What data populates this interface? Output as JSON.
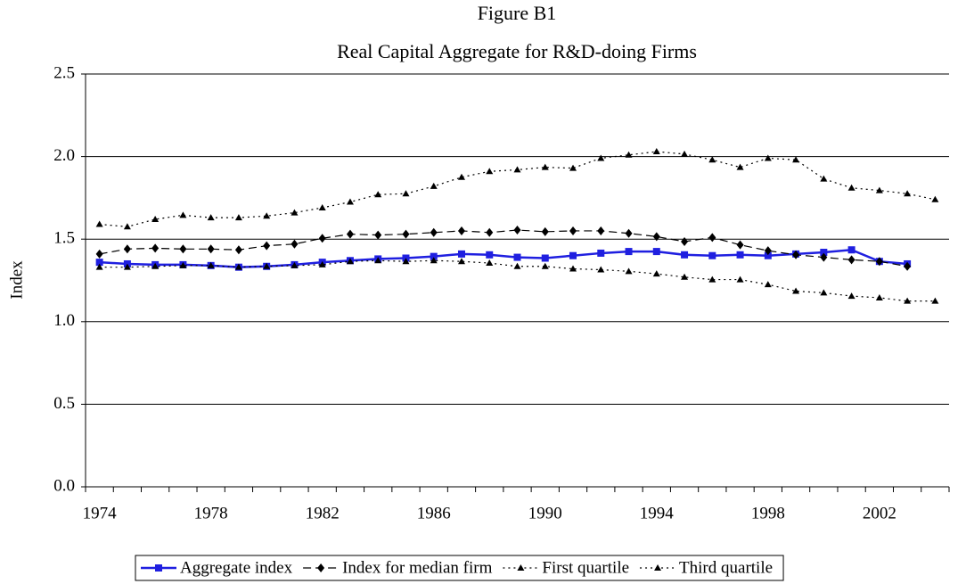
{
  "chart_data": {
    "type": "line",
    "title": "Figure B1",
    "subtitle": "Real Capital Aggregate for R&D-doing Firms",
    "y_label": "Index",
    "x": [
      1974,
      1975,
      1976,
      1977,
      1978,
      1979,
      1980,
      1981,
      1982,
      1983,
      1984,
      1985,
      1986,
      1987,
      1988,
      1989,
      1990,
      1991,
      1992,
      1993,
      1994,
      1995,
      1996,
      1997,
      1998,
      1999,
      2000,
      2001,
      2002,
      2003,
      2004
    ],
    "xlim": [
      1973.5,
      2004.5
    ],
    "xticks": [
      1974,
      1978,
      1982,
      1986,
      1990,
      1994,
      1998,
      2002
    ],
    "ylim": [
      0,
      2.5
    ],
    "yticks": [
      {
        "value": 0,
        "label": "0.0"
      },
      {
        "value": 0.5,
        "label": "0.5"
      },
      {
        "value": 1,
        "label": "1.0"
      },
      {
        "value": 1.5,
        "label": "1.5"
      },
      {
        "value": 2,
        "label": "2.0"
      },
      {
        "value": 2.5,
        "label": "2.5"
      }
    ],
    "grid": true,
    "legend": "bottom",
    "series": [
      {
        "name": "Aggregate index",
        "color": "#1f1fe0",
        "dash": "solid",
        "marker": "square",
        "values": [
          1.36,
          1.35,
          1.345,
          1.345,
          1.34,
          1.33,
          1.335,
          1.345,
          1.36,
          1.37,
          1.38,
          1.385,
          1.395,
          1.41,
          1.405,
          1.39,
          1.385,
          1.4,
          1.415,
          1.425,
          1.425,
          1.405,
          1.4,
          1.405,
          1.4,
          1.41,
          1.42,
          1.435,
          1.365,
          1.35,
          null
        ]
      },
      {
        "name": "Index for median firm",
        "color": "#000000",
        "dash": "dashed",
        "marker": "diamond",
        "values": [
          1.41,
          1.44,
          1.445,
          1.44,
          1.44,
          1.435,
          1.46,
          1.47,
          1.505,
          1.53,
          1.525,
          1.53,
          1.54,
          1.55,
          1.54,
          1.555,
          1.545,
          1.55,
          1.55,
          1.535,
          1.515,
          1.485,
          1.51,
          1.465,
          1.43,
          1.405,
          1.39,
          1.375,
          1.365,
          1.335,
          null
        ]
      },
      {
        "name": "First quartile",
        "color": "#000000",
        "dash": "dotted",
        "marker": "triangle",
        "values": [
          1.33,
          1.33,
          1.335,
          1.34,
          1.34,
          1.33,
          1.335,
          1.34,
          1.345,
          1.365,
          1.37,
          1.365,
          1.37,
          1.365,
          1.355,
          1.335,
          1.335,
          1.32,
          1.315,
          1.305,
          1.29,
          1.27,
          1.255,
          1.255,
          1.225,
          1.185,
          1.175,
          1.155,
          1.145,
          1.125,
          1.125
        ]
      },
      {
        "name": "Third quartile",
        "color": "#000000",
        "dash": "dotted",
        "marker": "triangle",
        "values": [
          1.59,
          1.575,
          1.62,
          1.645,
          1.63,
          1.63,
          1.64,
          1.66,
          1.69,
          1.725,
          1.77,
          1.775,
          1.82,
          1.875,
          1.91,
          1.92,
          1.935,
          1.93,
          1.99,
          2.01,
          2.03,
          2.015,
          1.98,
          1.935,
          1.99,
          1.98,
          1.865,
          1.81,
          1.795,
          1.775,
          1.74
        ]
      }
    ]
  }
}
